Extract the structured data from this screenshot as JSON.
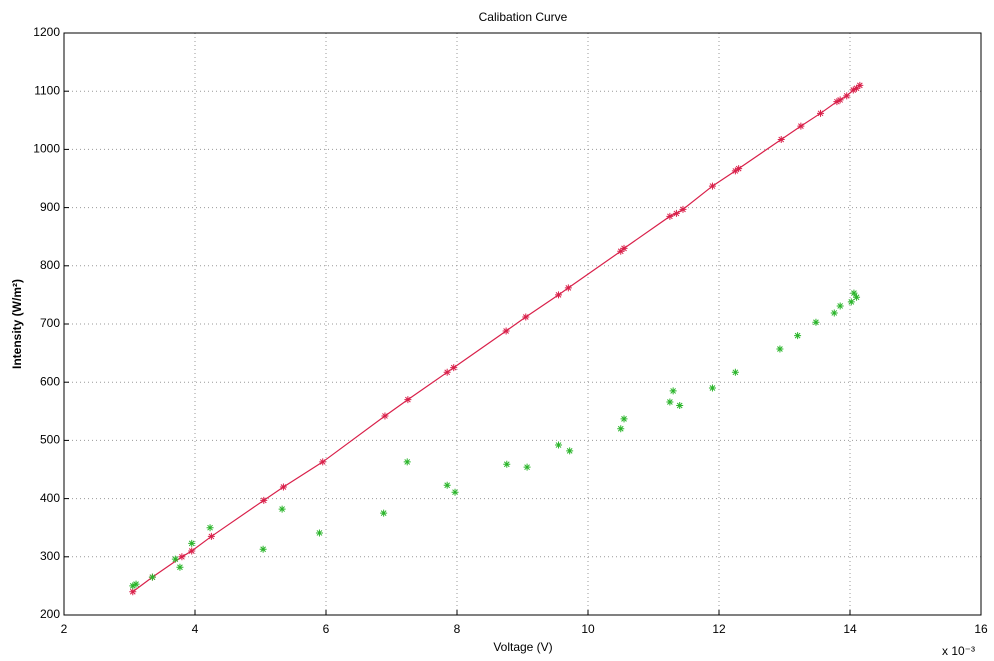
{
  "chart_data": {
    "type": "line",
    "title": "Calibation Curve",
    "x_label": "Voltage (V)",
    "y_label": "Intensity (W/m²)",
    "x_exponent_label": "x 10⁻³",
    "xlim": [
      2,
      16
    ],
    "xticks": [
      2,
      4,
      6,
      8,
      10,
      12,
      14,
      16
    ],
    "ylim": [
      200,
      1200
    ],
    "yticks": [
      200,
      300,
      400,
      500,
      600,
      700,
      800,
      900,
      1000,
      1100,
      1200
    ],
    "grid": true,
    "series": [
      {
        "color": "#d9204a",
        "line": true,
        "marker": "*",
        "x": [
          3.05,
          3.35,
          3.8,
          3.95,
          4.25,
          5.05,
          5.35,
          5.95,
          6.9,
          7.25,
          7.85,
          7.95,
          8.75,
          9.05,
          9.55,
          9.7,
          10.5,
          10.55,
          11.25,
          11.35,
          11.45,
          11.9,
          12.25,
          12.3,
          12.95,
          13.25,
          13.55,
          13.8,
          13.85,
          13.95,
          14.05,
          14.1,
          14.15
        ],
        "values": [
          240,
          265,
          300,
          310,
          335,
          397,
          420,
          463,
          542,
          570,
          617,
          625,
          688,
          712,
          750,
          762,
          825,
          830,
          885,
          890,
          897,
          937,
          963,
          967,
          1017,
          1040,
          1062,
          1082,
          1085,
          1092,
          1102,
          1105,
          1110
        ]
      },
      {
        "color": "#2bb52b",
        "line": false,
        "marker": "*",
        "x": [
          3.05,
          3.1,
          3.35,
          3.7,
          3.77,
          3.95,
          4.23,
          5.04,
          5.33,
          5.9,
          6.88,
          7.24,
          7.85,
          7.97,
          8.76,
          9.07,
          9.55,
          9.72,
          10.5,
          10.55,
          11.25,
          11.3,
          11.4,
          11.9,
          12.25,
          12.93,
          13.2,
          13.48,
          13.76,
          13.85,
          14.02,
          14.06,
          14.1
        ],
        "values": [
          250,
          253,
          265,
          296,
          282,
          323,
          350,
          313,
          382,
          341,
          375,
          463,
          423,
          411,
          459,
          454,
          492,
          482,
          520,
          537,
          566,
          585,
          560,
          590,
          617,
          657,
          680,
          703,
          719,
          731,
          738,
          753,
          746
        ]
      }
    ]
  }
}
